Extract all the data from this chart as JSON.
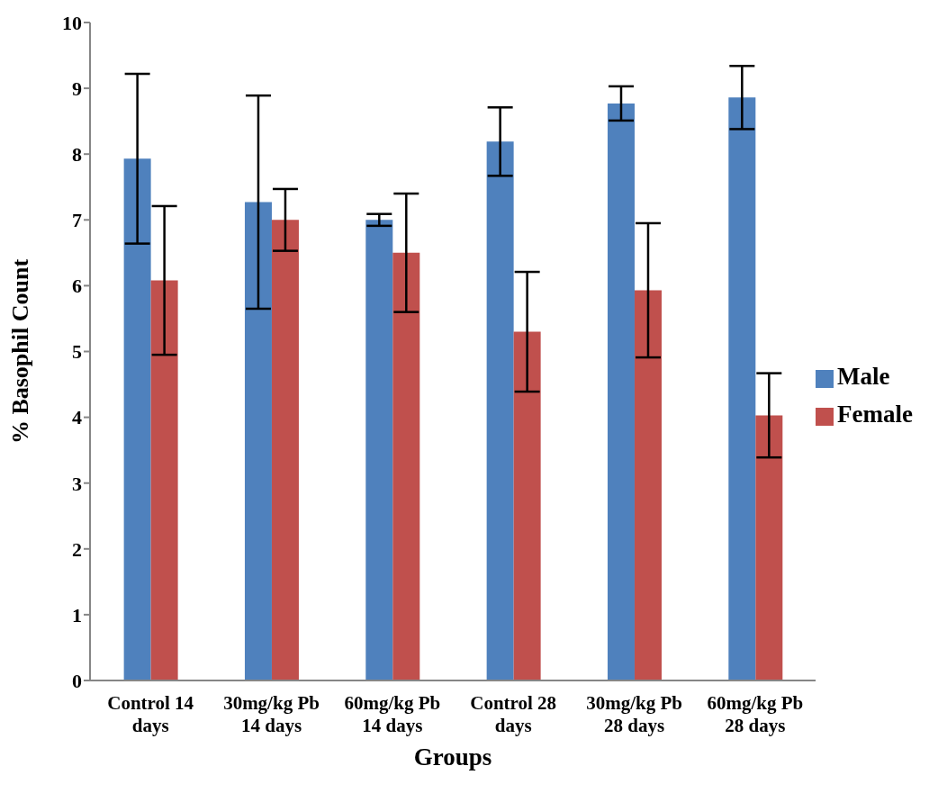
{
  "chart_data": {
    "type": "bar",
    "xlabel": "Groups",
    "ylabel": "% Basophil Count",
    "categories": [
      "Control 14 days",
      "30mg/kg Pb 14 days",
      "60mg/kg Pb 14 days",
      "Control 28 days",
      "30mg/kg Pb 28 days",
      "60mg/kg Pb 28 days"
    ],
    "series": [
      {
        "name": "Male",
        "color": "#4f81bd",
        "values": [
          7.93,
          7.27,
          7.0,
          8.19,
          8.77,
          8.86
        ],
        "errors": [
          1.29,
          1.62,
          0.09,
          0.52,
          0.26,
          0.48
        ]
      },
      {
        "name": "Female",
        "color": "#c0504d",
        "values": [
          6.08,
          7.0,
          6.5,
          5.3,
          5.93,
          4.03
        ],
        "errors": [
          1.13,
          0.47,
          0.9,
          0.91,
          1.02,
          0.64
        ]
      }
    ],
    "ylim": [
      0,
      10
    ],
    "yticks": [
      0,
      1,
      2,
      3,
      4,
      5,
      6,
      7,
      8,
      9,
      10
    ],
    "grid": false,
    "legend": "right"
  }
}
